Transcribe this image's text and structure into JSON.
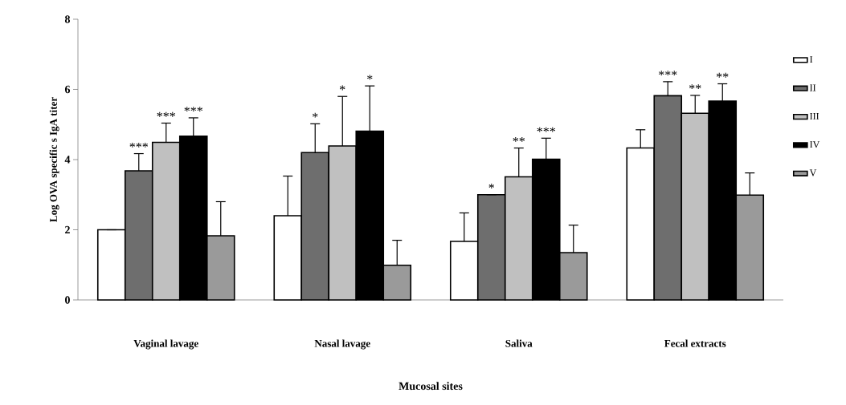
{
  "chart_data": {
    "type": "bar",
    "categories": [
      "Vaginal lavage",
      "Nasal lavage",
      "Saliva",
      "Fecal extracts"
    ],
    "xlabel": "Mucosal sites",
    "ylabel": "Log OVA specific s IgA titer",
    "ylim": [
      0,
      8
    ],
    "yticks": [
      0,
      2,
      4,
      6,
      8
    ],
    "grid": false,
    "legend": "right",
    "series": [
      {
        "name": "I",
        "color": "#ffffff",
        "values": [
          2.0,
          2.4,
          1.67,
          4.33
        ],
        "errors": [
          null,
          1.13,
          0.81,
          0.52
        ]
      },
      {
        "name": "II",
        "color": "#6e6e6e",
        "values": [
          3.68,
          4.2,
          3.0,
          5.82
        ],
        "errors": [
          0.49,
          0.82,
          null,
          0.4
        ]
      },
      {
        "name": "III",
        "color": "#c0c0c0",
        "values": [
          4.49,
          4.39,
          3.51,
          5.32
        ],
        "errors": [
          0.55,
          1.41,
          0.82,
          0.51
        ]
      },
      {
        "name": "IV",
        "color": "#000000",
        "values": [
          4.67,
          4.81,
          4.01,
          5.67
        ],
        "errors": [
          0.52,
          1.29,
          0.6,
          0.49
        ]
      },
      {
        "name": "V",
        "color": "#9a9a9a",
        "values": [
          1.83,
          0.99,
          1.35,
          2.99
        ],
        "errors": [
          0.97,
          0.71,
          0.78,
          0.63
        ]
      }
    ],
    "annotations": [
      "***",
      "***",
      "***",
      "*",
      "*",
      "*",
      "*",
      "**",
      "***",
      "***",
      "**",
      "**"
    ]
  }
}
